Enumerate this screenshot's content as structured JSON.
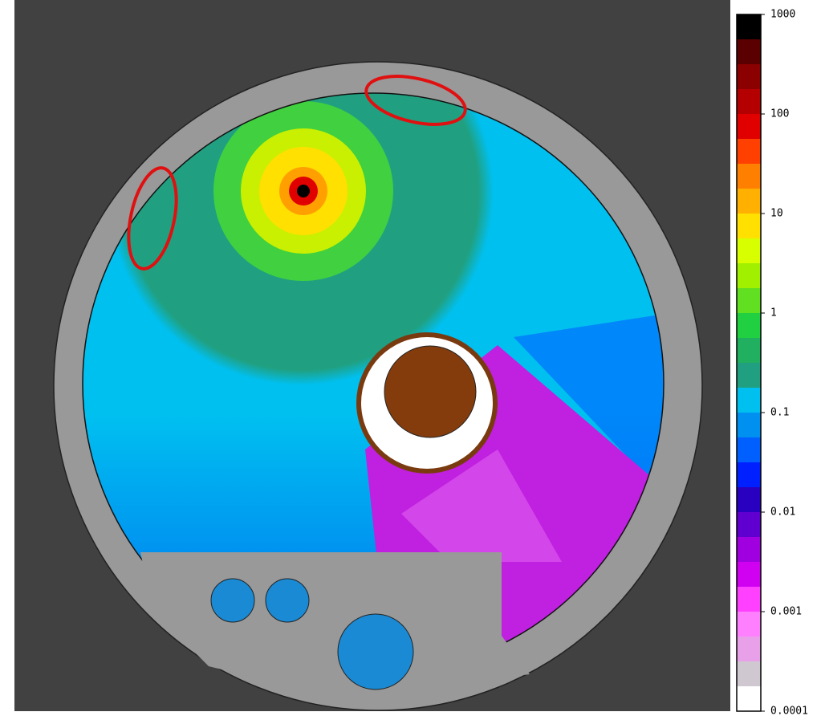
{
  "colorbar": {
    "ticks": [
      1000,
      100,
      10,
      1,
      0.1,
      0.01,
      0.001,
      0.0001
    ],
    "colors": [
      "#000000",
      "#5a0000",
      "#8b0000",
      "#b40000",
      "#e00000",
      "#ff4000",
      "#ff8000",
      "#ffb000",
      "#ffe000",
      "#d8ff00",
      "#a0f000",
      "#60e020",
      "#20d040",
      "#20b060",
      "#20a080",
      "#00c0f0",
      "#0090f0",
      "#0060ff",
      "#0020ff",
      "#2a00c0",
      "#6000d0",
      "#a000e0",
      "#d000f0",
      "#ff40ff",
      "#ff80ff",
      "#e8a0e8",
      "#d0c8d0",
      "#ffffff"
    ]
  }
}
